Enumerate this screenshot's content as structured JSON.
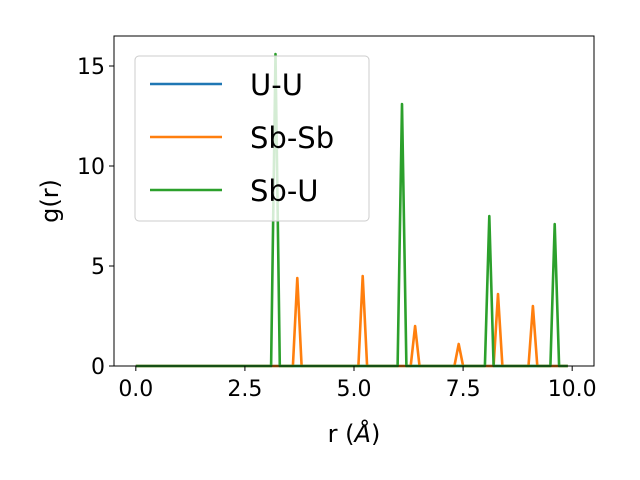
{
  "chart_data": {
    "type": "line",
    "xlabel_prefix": "r (",
    "xlabel_symbol": "Å",
    "xlabel_suffix": ")",
    "ylabel": "g(r)",
    "xlim": [
      -0.5,
      10.5
    ],
    "ylim": [
      0,
      16.5
    ],
    "xticks": [
      0.0,
      2.5,
      5.0,
      7.5,
      10.0
    ],
    "xtick_labels": [
      "0.0",
      "2.5",
      "5.0",
      "7.5",
      "10.0"
    ],
    "yticks": [
      0,
      5,
      10,
      15
    ],
    "ytick_labels": [
      "0",
      "5",
      "10",
      "15"
    ],
    "grid": false,
    "legend_position": "top-left",
    "series": [
      {
        "name": "U-U",
        "color": "#1f77b4",
        "x": [
          0.0,
          9.9
        ],
        "y": [
          0,
          0
        ]
      },
      {
        "name": "Sb-Sb",
        "color": "#ff7f0e",
        "x": [
          0.0,
          3.6,
          3.7,
          3.8,
          5.1,
          5.2,
          5.3,
          6.3,
          6.4,
          6.5,
          7.3,
          7.4,
          7.5,
          8.2,
          8.3,
          8.4,
          9.0,
          9.1,
          9.2,
          9.9
        ],
        "y": [
          0,
          0,
          4.4,
          0,
          0,
          4.5,
          0,
          0,
          2.0,
          0,
          0,
          1.1,
          0,
          0,
          3.6,
          0,
          0,
          3.0,
          0,
          0
        ]
      },
      {
        "name": "Sb-U",
        "color": "#2ca02c",
        "x": [
          0.0,
          3.1,
          3.2,
          3.3,
          6.0,
          6.1,
          6.2,
          8.0,
          8.1,
          8.2,
          9.5,
          9.6,
          9.7,
          9.9
        ],
        "y": [
          0,
          0,
          15.6,
          0,
          0,
          13.1,
          0,
          0,
          7.5,
          0,
          0,
          7.1,
          0,
          0
        ]
      }
    ]
  }
}
